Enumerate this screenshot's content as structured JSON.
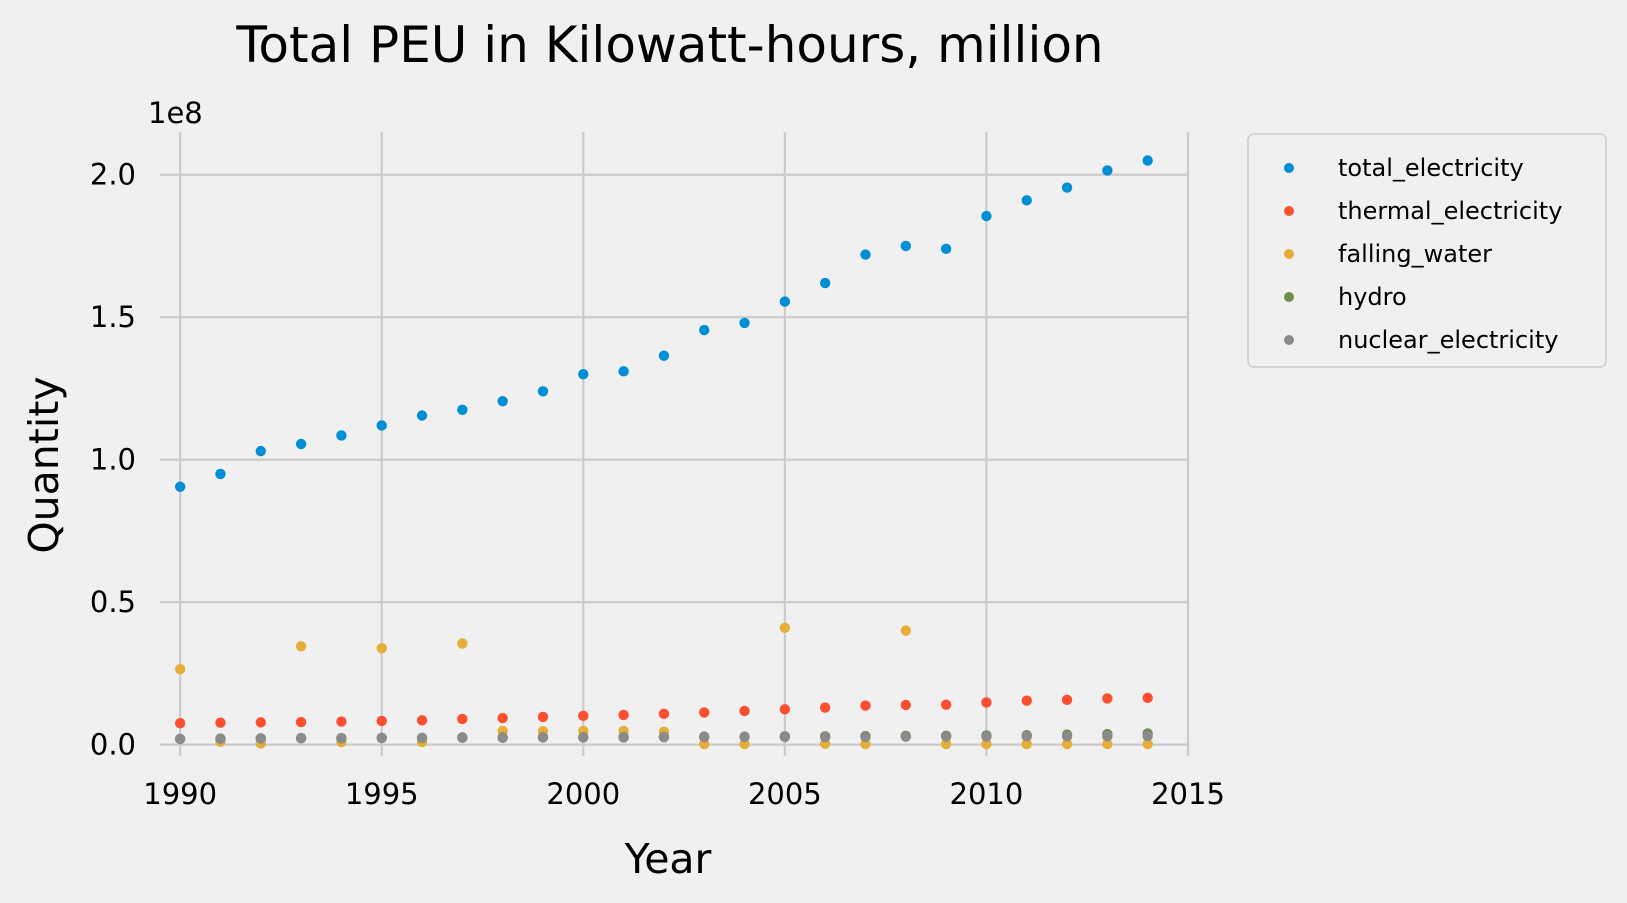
{
  "chart_data": {
    "type": "scatter",
    "title": "Total PEU in Kilowatt-hours, million",
    "xlabel": "Year",
    "ylabel": "Quantity",
    "offset_label": "1e8",
    "xlim": [
      1989.5,
      2015
    ],
    "ylim": [
      -4000000,
      215000000
    ],
    "xticks": [
      "1990",
      "1995",
      "2000",
      "2005",
      "2010",
      "2015"
    ],
    "yticks": [
      "0.0",
      "0.5",
      "1.0",
      "1.5",
      "2.0"
    ],
    "grid": true,
    "legend_position": "upper-right-outside",
    "series": [
      {
        "name": "total_electricity",
        "color": "#008fd5",
        "points": [
          [
            1990,
            90500000
          ],
          [
            1991,
            95000000
          ],
          [
            1992,
            103000000
          ],
          [
            1993,
            105500000
          ],
          [
            1994,
            108500000
          ],
          [
            1995,
            112000000
          ],
          [
            1996,
            115500000
          ],
          [
            1997,
            117500000
          ],
          [
            1998,
            120500000
          ],
          [
            1999,
            124000000
          ],
          [
            2000,
            130000000
          ],
          [
            2001,
            131000000
          ],
          [
            2002,
            136500000
          ],
          [
            2003,
            145500000
          ],
          [
            2004,
            148000000
          ],
          [
            2005,
            155500000
          ],
          [
            2006,
            162000000
          ],
          [
            2007,
            172000000
          ],
          [
            2008,
            175000000
          ],
          [
            2009,
            174000000
          ],
          [
            2010,
            185500000
          ],
          [
            2011,
            191000000
          ],
          [
            2012,
            195500000
          ],
          [
            2013,
            201500000
          ],
          [
            2014,
            205000000
          ]
        ]
      },
      {
        "name": "thermal_electricity",
        "color": "#fc4f30",
        "points": [
          [
            1990,
            7500000
          ],
          [
            1991,
            7700000
          ],
          [
            1992,
            7800000
          ],
          [
            1993,
            7900000
          ],
          [
            1994,
            8100000
          ],
          [
            1995,
            8300000
          ],
          [
            1996,
            8500000
          ],
          [
            1997,
            9000000
          ],
          [
            1998,
            9300000
          ],
          [
            1999,
            9700000
          ],
          [
            2000,
            10100000
          ],
          [
            2001,
            10400000
          ],
          [
            2002,
            10800000
          ],
          [
            2003,
            11300000
          ],
          [
            2004,
            11800000
          ],
          [
            2005,
            12400000
          ],
          [
            2006,
            13000000
          ],
          [
            2007,
            13700000
          ],
          [
            2008,
            13900000
          ],
          [
            2009,
            14000000
          ],
          [
            2010,
            14800000
          ],
          [
            2011,
            15400000
          ],
          [
            2012,
            15700000
          ],
          [
            2013,
            16200000
          ],
          [
            2014,
            16400000
          ]
        ]
      },
      {
        "name": "falling_water",
        "color": "#e5ae38",
        "points": [
          [
            1990,
            26500000
          ],
          [
            1991,
            1000000
          ],
          [
            1992,
            400000
          ],
          [
            1993,
            34500000
          ],
          [
            1994,
            900000
          ],
          [
            1995,
            33800000
          ],
          [
            1996,
            900000
          ],
          [
            1997,
            35500000
          ],
          [
            1998,
            4800000
          ],
          [
            1999,
            4700000
          ],
          [
            2000,
            4800000
          ],
          [
            2001,
            4800000
          ],
          [
            2002,
            4500000
          ],
          [
            2003,
            200000
          ],
          [
            2004,
            200000
          ],
          [
            2005,
            41000000
          ],
          [
            2006,
            300000
          ],
          [
            2007,
            200000
          ],
          [
            2008,
            40000000
          ],
          [
            2009,
            200000
          ],
          [
            2010,
            200000
          ],
          [
            2011,
            200000
          ],
          [
            2012,
            200000
          ],
          [
            2013,
            200000
          ],
          [
            2014,
            200000
          ]
        ]
      },
      {
        "name": "hydro",
        "color": "#6d904f",
        "points": [
          [
            1990,
            2000000
          ],
          [
            1991,
            2100000
          ],
          [
            1992,
            2200000
          ],
          [
            1993,
            2300000
          ],
          [
            1994,
            2300000
          ],
          [
            1995,
            2400000
          ],
          [
            1996,
            2400000
          ],
          [
            1997,
            2500000
          ],
          [
            1998,
            2500000
          ],
          [
            1999,
            2600000
          ],
          [
            2000,
            2600000
          ],
          [
            2001,
            2700000
          ],
          [
            2002,
            2700000
          ],
          [
            2003,
            2800000
          ],
          [
            2004,
            2800000
          ],
          [
            2005,
            2900000
          ],
          [
            2006,
            2900000
          ],
          [
            2007,
            3000000
          ],
          [
            2008,
            3100000
          ],
          [
            2009,
            3100000
          ],
          [
            2010,
            3200000
          ],
          [
            2011,
            3300000
          ],
          [
            2012,
            3500000
          ],
          [
            2013,
            3700000
          ],
          [
            2014,
            3900000
          ]
        ]
      },
      {
        "name": "nuclear_electricity",
        "color": "#8b8b8b",
        "points": [
          [
            1990,
            2000000
          ],
          [
            1991,
            2100000
          ],
          [
            1992,
            2100000
          ],
          [
            1993,
            2200000
          ],
          [
            1994,
            2200000
          ],
          [
            1995,
            2300000
          ],
          [
            1996,
            2300000
          ],
          [
            1997,
            2400000
          ],
          [
            1998,
            2400000
          ],
          [
            1999,
            2500000
          ],
          [
            2000,
            2500000
          ],
          [
            2001,
            2500000
          ],
          [
            2002,
            2600000
          ],
          [
            2003,
            2600000
          ],
          [
            2004,
            2700000
          ],
          [
            2005,
            2700000
          ],
          [
            2006,
            2700000
          ],
          [
            2007,
            2700000
          ],
          [
            2008,
            2800000
          ],
          [
            2009,
            2800000
          ],
          [
            2010,
            2800000
          ],
          [
            2011,
            2900000
          ],
          [
            2012,
            2900000
          ],
          [
            2013,
            2900000
          ],
          [
            2014,
            3000000
          ]
        ]
      }
    ]
  }
}
